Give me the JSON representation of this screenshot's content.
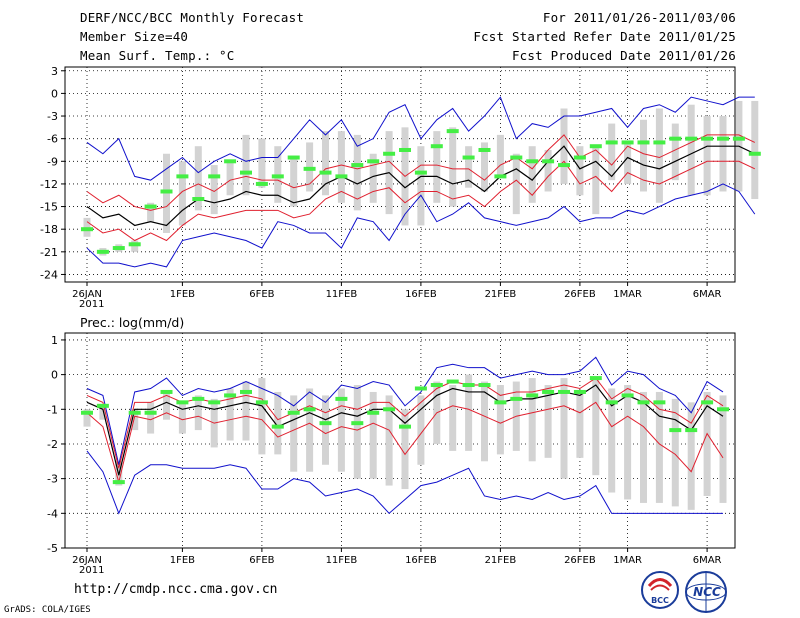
{
  "header": {
    "title": "DERF/NCC/BCC Monthly Forecast",
    "member_size": "Member Size=40",
    "variable1": "Mean Surf. Temp.: °C",
    "period": "For 2011/01/26-2011/03/06",
    "started": "Fcst Started Refer Date 2011/01/25",
    "produced": "Fcst Produced Date 2011/01/26"
  },
  "footer": {
    "url": "http://cmdp.ncc.cma.gov.cn",
    "grads": "GrADS: COLA/IGES",
    "logo_left_text": "BCC",
    "logo_right_text": "NCC"
  },
  "colors": {
    "ensemble_bar": "#d3d3d3",
    "ensemble_mean": "#000000",
    "std_band": "#e0202f",
    "extremes": "#1010cc",
    "climatology": "#44ee44"
  },
  "chart_data": [
    {
      "type": "line",
      "title": "Mean Surf. Temp.: °C",
      "ylim": [
        -25,
        3.5
      ],
      "yticks": [
        3,
        0,
        -3,
        -6,
        -9,
        -12,
        -15,
        -18,
        -21,
        -24
      ],
      "xticks": [
        {
          "label": "26JAN",
          "day": 0,
          "sub": "2011"
        },
        {
          "label": "1FEB",
          "day": 6
        },
        {
          "label": "6FEB",
          "day": 11
        },
        {
          "label": "11FEB",
          "day": 16
        },
        {
          "label": "16FEB",
          "day": 21
        },
        {
          "label": "21FEB",
          "day": 26
        },
        {
          "label": "26FEB",
          "day": 31
        },
        {
          "label": "1MAR",
          "day": 34
        },
        {
          "label": "6MAR",
          "day": 39
        }
      ],
      "mean": [
        -15.0,
        -16.5,
        -16.0,
        -17.5,
        -17.0,
        -17.5,
        -15.5,
        -14.0,
        -14.5,
        -14.0,
        -13.0,
        -13.5,
        -13.5,
        -14.5,
        -14.0,
        -12.0,
        -11.0,
        -12.0,
        -11.0,
        -10.5,
        -12.5,
        -11.0,
        -11.0,
        -12.0,
        -11.5,
        -13.0,
        -11.0,
        -10.0,
        -11.5,
        -9.0,
        -7.0,
        -10.0,
        -9.0,
        -11.0,
        -8.5,
        -9.5,
        -10.0,
        -9.0,
        -8.0,
        -7.0,
        -7.0,
        -7.0,
        -8.0
      ],
      "upper": [
        -13.0,
        -14.5,
        -13.5,
        -15.0,
        -15.5,
        -15.0,
        -13.0,
        -12.0,
        -13.0,
        -11.5,
        -11.0,
        -11.5,
        -11.5,
        -12.5,
        -12.0,
        -10.0,
        -9.5,
        -10.0,
        -9.5,
        -9.0,
        -11.0,
        -9.5,
        -9.5,
        -10.0,
        -10.0,
        -11.5,
        -9.5,
        -8.5,
        -10.0,
        -7.5,
        -5.5,
        -8.5,
        -7.5,
        -9.5,
        -7.0,
        -8.0,
        -8.5,
        -7.5,
        -6.5,
        -5.5,
        -5.5,
        -5.5,
        -6.5
      ],
      "lower": [
        -17.0,
        -18.5,
        -18.0,
        -19.5,
        -18.5,
        -19.5,
        -17.5,
        -16.0,
        -16.5,
        -16.0,
        -15.5,
        -15.5,
        -15.5,
        -16.5,
        -16.0,
        -14.0,
        -13.0,
        -14.0,
        -13.0,
        -12.5,
        -14.5,
        -13.0,
        -13.0,
        -14.0,
        -13.5,
        -15.0,
        -13.0,
        -11.5,
        -13.5,
        -11.0,
        -9.0,
        -12.0,
        -11.0,
        -13.0,
        -10.5,
        -11.5,
        -12.0,
        -11.0,
        -10.0,
        -9.0,
        -9.0,
        -9.0,
        -10.0
      ],
      "max": [
        -6.5,
        -8.0,
        -6.0,
        -11.0,
        -11.5,
        -10.0,
        -8.5,
        -10.5,
        -9.0,
        -8.0,
        -9.0,
        -8.5,
        -8.5,
        -6.0,
        -3.5,
        -5.5,
        -3.5,
        -7.0,
        -6.0,
        -2.5,
        -1.5,
        -6.0,
        -3.5,
        -2.0,
        -5.0,
        -3.0,
        -0.5,
        -6.0,
        -4.0,
        -4.5,
        -3.0,
        -3.0,
        -2.5,
        -2.0,
        -4.5,
        -2.0,
        -1.5,
        -2.5,
        -0.5,
        -1.0,
        -1.5,
        -0.5,
        -0.5
      ],
      "min": [
        -20.5,
        -22.5,
        -22.5,
        -23.0,
        -22.5,
        -23.0,
        -19.5,
        -19.0,
        -18.5,
        -19.0,
        -19.5,
        -20.5,
        -17.0,
        -17.5,
        -18.5,
        -18.5,
        -20.5,
        -16.5,
        -17.0,
        -19.5,
        -16.0,
        -13.5,
        -17.0,
        -16.0,
        -14.5,
        -16.5,
        -17.0,
        -17.5,
        -17.0,
        -16.5,
        -15.0,
        -17.0,
        -16.5,
        -16.5,
        -15.5,
        -16.0,
        -15.0,
        -14.0,
        -13.5,
        -13.0,
        -12.0,
        -13.0,
        -16.0
      ],
      "bars": [
        [
          -16.5,
          -19.0
        ],
        [
          -20.5,
          -21.5
        ],
        [
          -20.0,
          -21.0
        ],
        [
          -19.5,
          -21.0
        ],
        [
          -14.5,
          -17.0
        ],
        [
          -8.0,
          -18.5
        ],
        [
          -9.0,
          -17.5
        ],
        [
          -7.0,
          -15.5
        ],
        [
          -9.5,
          -16.0
        ],
        [
          -9.0,
          -13.5
        ],
        [
          -5.5,
          -13.5
        ],
        [
          -6.0,
          -12.5
        ],
        [
          -7.0,
          -14.5
        ],
        [
          -8.5,
          -15.0
        ],
        [
          -6.5,
          -13.0
        ],
        [
          -5.0,
          -13.5
        ],
        [
          -5.0,
          -14.5
        ],
        [
          -5.5,
          -15.5
        ],
        [
          -8.0,
          -14.5
        ],
        [
          -5.0,
          -16.0
        ],
        [
          -4.5,
          -17.5
        ],
        [
          -7.0,
          -17.5
        ],
        [
          -5.0,
          -14.5
        ],
        [
          -4.5,
          -15.0
        ],
        [
          -7.0,
          -12.5
        ],
        [
          -6.5,
          -13.0
        ],
        [
          -5.5,
          -11.0
        ],
        [
          -8.0,
          -16.0
        ],
        [
          -7.0,
          -14.5
        ],
        [
          -7.5,
          -13.0
        ],
        [
          -2.0,
          -12.0
        ],
        [
          -7.0,
          -13.5
        ],
        [
          -7.0,
          -16.0
        ],
        [
          -4.0,
          -11.5
        ],
        [
          -6.5,
          -12.0
        ],
        [
          -3.5,
          -13.0
        ],
        [
          -2.0,
          -14.5
        ],
        [
          -4.0,
          -11.5
        ],
        [
          -1.5,
          -13.5
        ],
        [
          -3.0,
          -13.5
        ],
        [
          -3.0,
          -13.0
        ],
        [
          -1.0,
          -13.0
        ],
        [
          -1.0,
          -14.0
        ]
      ],
      "clim": [
        -18.0,
        -21.0,
        -20.5,
        -20.0,
        -15.0,
        -13.0,
        -11.0,
        -14.0,
        -11.0,
        -9.0,
        -10.5,
        -12.0,
        -11.0,
        -8.5,
        -10.0,
        -10.5,
        -11.0,
        -9.5,
        -9.0,
        -8.0,
        -7.5,
        -10.5,
        -7.0,
        -5.0,
        -8.5,
        -7.5,
        -11.0,
        -8.5,
        -9.0,
        -9.0,
        -9.5,
        -8.5,
        -7.0,
        -6.5,
        -6.5,
        -6.5,
        -6.5,
        -6.0,
        -6.0,
        -6.0,
        -6.0,
        -6.0,
        -8.0
      ]
    },
    {
      "type": "line",
      "title": "Prec.: log(mm/d)",
      "ylim": [
        -5,
        1.2
      ],
      "yticks": [
        1,
        0,
        -1,
        -2,
        -3,
        -4,
        -5
      ],
      "xticks": [
        {
          "label": "26JAN",
          "day": 0,
          "sub": "2011"
        },
        {
          "label": "1FEB",
          "day": 6
        },
        {
          "label": "6FEB",
          "day": 11
        },
        {
          "label": "11FEB",
          "day": 16
        },
        {
          "label": "16FEB",
          "day": 21
        },
        {
          "label": "21FEB",
          "day": 26
        },
        {
          "label": "26FEB",
          "day": 31
        },
        {
          "label": "1MAR",
          "day": 34
        },
        {
          "label": "6MAR",
          "day": 39
        }
      ],
      "mean": [
        -0.8,
        -1.0,
        -2.9,
        -1.0,
        -1.0,
        -0.8,
        -1.0,
        -0.9,
        -1.0,
        -0.9,
        -0.8,
        -0.9,
        -1.5,
        -1.3,
        -1.1,
        -1.3,
        -1.1,
        -1.2,
        -1.0,
        -1.0,
        -1.4,
        -1.0,
        -0.6,
        -0.4,
        -0.5,
        -0.5,
        -0.8,
        -0.7,
        -0.7,
        -0.6,
        -0.5,
        -0.6,
        -0.3,
        -0.9,
        -0.6,
        -0.8,
        -1.2,
        -1.3,
        -1.6,
        -0.9,
        -1.2
      ],
      "upper": [
        -0.6,
        -0.8,
        -2.7,
        -0.8,
        -0.8,
        -0.6,
        -0.8,
        -0.7,
        -0.8,
        -0.7,
        -0.6,
        -0.7,
        -1.3,
        -1.1,
        -0.9,
        -1.1,
        -0.9,
        -1.0,
        -0.8,
        -0.8,
        -1.2,
        -0.8,
        -0.4,
        -0.2,
        -0.3,
        -0.3,
        -0.6,
        -0.5,
        -0.5,
        -0.4,
        -0.3,
        -0.4,
        -0.1,
        -0.7,
        -0.4,
        -0.6,
        -1.0,
        -1.1,
        -1.4,
        -0.6,
        -0.9
      ],
      "lower": [
        -1.1,
        -1.5,
        -3.1,
        -1.2,
        -1.3,
        -1.1,
        -1.3,
        -1.2,
        -1.4,
        -1.3,
        -1.2,
        -1.3,
        -1.8,
        -1.6,
        -1.4,
        -1.7,
        -1.5,
        -1.6,
        -1.4,
        -1.6,
        -2.3,
        -1.7,
        -1.1,
        -0.9,
        -1.0,
        -1.2,
        -1.4,
        -1.2,
        -1.1,
        -1.0,
        -0.9,
        -1.1,
        -0.8,
        -1.5,
        -1.2,
        -1.5,
        -2.0,
        -2.3,
        -2.8,
        -1.7,
        -2.4
      ],
      "max": [
        -0.4,
        -0.6,
        -2.6,
        -0.5,
        -0.4,
        -0.1,
        -0.6,
        -0.4,
        -0.5,
        -0.4,
        -0.2,
        -0.4,
        -0.6,
        -0.9,
        -0.5,
        -0.8,
        -0.3,
        -0.4,
        -0.2,
        -0.3,
        -0.9,
        -0.5,
        0.2,
        0.3,
        0.2,
        0.2,
        -0.1,
        0.0,
        0.1,
        0.0,
        0.0,
        0.1,
        0.5,
        -0.3,
        0.1,
        0.0,
        -0.4,
        -0.6,
        -1.1,
        -0.2,
        -0.5
      ],
      "min": [
        -2.2,
        -2.8,
        -4.0,
        -2.9,
        -2.6,
        -2.6,
        -2.7,
        -2.7,
        -2.7,
        -2.6,
        -2.7,
        -3.3,
        -3.3,
        -3.0,
        -3.1,
        -3.5,
        -3.4,
        -3.3,
        -3.5,
        -4.0,
        -3.6,
        -3.2,
        -3.1,
        -2.9,
        -2.7,
        -3.5,
        -3.6,
        -3.5,
        -3.6,
        -3.4,
        -3.6,
        -3.5,
        -3.2,
        -4.0,
        -4.0,
        -4.0,
        -4.0,
        -4.0,
        -4.0,
        -4.0,
        -4.0
      ],
      "bars": [
        [
          -1.0,
          -1.5
        ],
        [
          -0.9,
          -1.3
        ],
        [
          -2.5,
          -3.2
        ],
        [
          -1.0,
          -1.6
        ],
        [
          -0.8,
          -1.7
        ],
        [
          -0.5,
          -1.3
        ],
        [
          -0.8,
          -1.7
        ],
        [
          -0.6,
          -1.6
        ],
        [
          -0.7,
          -2.1
        ],
        [
          -0.4,
          -1.9
        ],
        [
          -0.2,
          -1.9
        ],
        [
          -0.1,
          -2.3
        ],
        [
          -0.5,
          -2.3
        ],
        [
          -0.6,
          -2.8
        ],
        [
          -0.4,
          -2.8
        ],
        [
          -0.6,
          -2.6
        ],
        [
          -0.4,
          -2.8
        ],
        [
          -0.3,
          -3.0
        ],
        [
          -0.5,
          -3.0
        ],
        [
          -0.6,
          -3.2
        ],
        [
          -1.0,
          -3.3
        ],
        [
          -0.6,
          -2.6
        ],
        [
          -0.2,
          -2.0
        ],
        [
          -0.3,
          -2.2
        ],
        [
          0.0,
          -2.2
        ],
        [
          -0.2,
          -2.5
        ],
        [
          -0.3,
          -2.3
        ],
        [
          -0.2,
          -2.2
        ],
        [
          -0.1,
          -2.5
        ],
        [
          -0.3,
          -2.4
        ],
        [
          -0.1,
          -3.0
        ],
        [
          -0.5,
          -2.4
        ],
        [
          -0.1,
          -2.9
        ],
        [
          -0.4,
          -3.4
        ],
        [
          -0.3,
          -3.6
        ],
        [
          -0.5,
          -3.7
        ],
        [
          -0.5,
          -3.7
        ],
        [
          -0.7,
          -3.8
        ],
        [
          -0.8,
          -3.9
        ],
        [
          -0.5,
          -3.5
        ],
        [
          -0.6,
          -3.7
        ]
      ],
      "clim": [
        -1.1,
        -0.9,
        -3.1,
        -1.1,
        -1.1,
        -0.5,
        -0.8,
        -0.7,
        -0.8,
        -0.6,
        -0.5,
        -0.8,
        -1.5,
        -1.1,
        -1.0,
        -1.4,
        -0.7,
        -1.4,
        -1.1,
        -1.0,
        -1.5,
        -0.4,
        -0.3,
        -0.2,
        -0.3,
        -0.3,
        -0.8,
        -0.7,
        -0.6,
        -0.5,
        -0.5,
        -0.5,
        -0.1,
        -0.8,
        -0.6,
        -0.8,
        -0.8,
        -1.6,
        -1.6,
        -0.8,
        -1.0
      ]
    }
  ]
}
